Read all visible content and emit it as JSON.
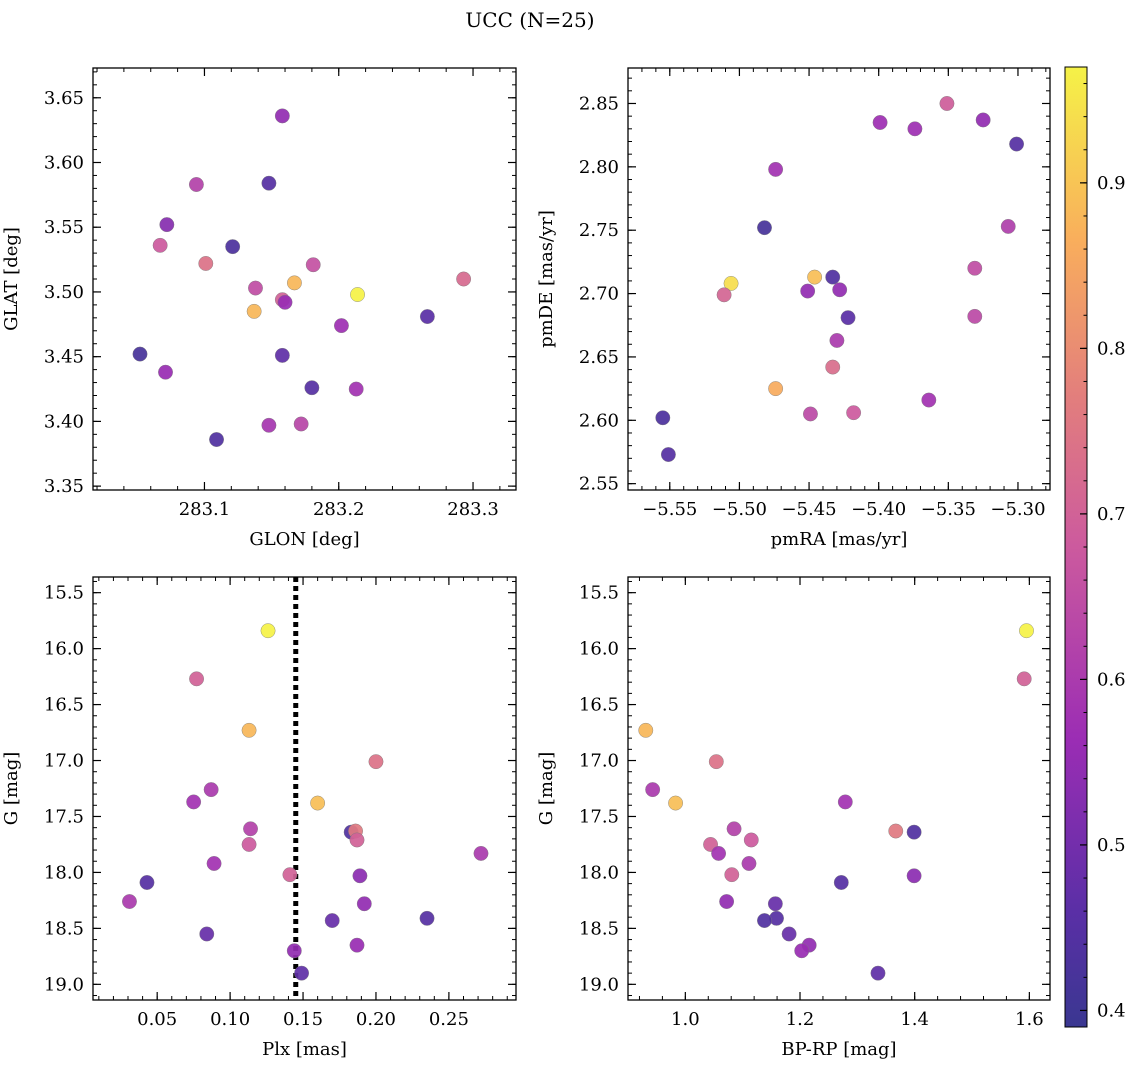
{
  "figure": {
    "title": "UCC (N=25)"
  },
  "colorbar": {
    "range": [
      0.39,
      0.97
    ],
    "ticks": [
      0.4,
      0.5,
      0.6,
      0.7,
      0.8,
      0.9
    ],
    "colormap": "plasma"
  },
  "chart_data": [
    {
      "type": "scatter",
      "xlabel": "GLON [deg]",
      "ylabel": "GLAT [deg]",
      "xlim": [
        283.017,
        283.332
      ],
      "ylim": [
        3.347,
        3.673
      ],
      "xticks": [
        283.1,
        283.2,
        283.3
      ],
      "yticks": [
        3.35,
        3.4,
        3.45,
        3.5,
        3.55,
        3.6,
        3.65
      ],
      "xdec": 1,
      "ydec": 2,
      "points": [
        {
          "x": 283.158,
          "y": 3.636,
          "c": 0.55
        },
        {
          "x": 283.148,
          "y": 3.584,
          "c": 0.45
        },
        {
          "x": 283.094,
          "y": 3.583,
          "c": 0.62
        },
        {
          "x": 283.072,
          "y": 3.552,
          "c": 0.53
        },
        {
          "x": 283.067,
          "y": 3.536,
          "c": 0.68
        },
        {
          "x": 283.121,
          "y": 3.535,
          "c": 0.43
        },
        {
          "x": 283.101,
          "y": 3.522,
          "c": 0.74
        },
        {
          "x": 283.181,
          "y": 3.521,
          "c": 0.66
        },
        {
          "x": 283.293,
          "y": 3.51,
          "c": 0.72
        },
        {
          "x": 283.167,
          "y": 3.507,
          "c": 0.88
        },
        {
          "x": 283.138,
          "y": 3.503,
          "c": 0.65
        },
        {
          "x": 283.214,
          "y": 3.498,
          "c": 0.97
        },
        {
          "x": 283.158,
          "y": 3.494,
          "c": 0.7
        },
        {
          "x": 283.16,
          "y": 3.492,
          "c": 0.56
        },
        {
          "x": 283.137,
          "y": 3.485,
          "c": 0.88
        },
        {
          "x": 283.266,
          "y": 3.481,
          "c": 0.46
        },
        {
          "x": 283.202,
          "y": 3.474,
          "c": 0.57
        },
        {
          "x": 283.052,
          "y": 3.452,
          "c": 0.42
        },
        {
          "x": 283.158,
          "y": 3.451,
          "c": 0.47
        },
        {
          "x": 283.071,
          "y": 3.438,
          "c": 0.56
        },
        {
          "x": 283.18,
          "y": 3.426,
          "c": 0.45
        },
        {
          "x": 283.213,
          "y": 3.425,
          "c": 0.58
        },
        {
          "x": 283.172,
          "y": 3.398,
          "c": 0.63
        },
        {
          "x": 283.148,
          "y": 3.397,
          "c": 0.59
        },
        {
          "x": 283.109,
          "y": 3.386,
          "c": 0.44
        }
      ]
    },
    {
      "type": "scatter",
      "xlabel": "pmRA [mas/yr]",
      "ylabel": "pmDE [mas/yr]",
      "xlim": [
        -5.58,
        -5.277
      ],
      "ylim": [
        2.545,
        2.878
      ],
      "xticks": [
        -5.55,
        -5.5,
        -5.45,
        -5.4,
        -5.35,
        -5.3
      ],
      "yticks": [
        2.55,
        2.6,
        2.65,
        2.7,
        2.75,
        2.8,
        2.85
      ],
      "xdec": 2,
      "ydec": 2,
      "points": [
        {
          "x": -5.351,
          "y": 2.85,
          "c": 0.69
        },
        {
          "x": -5.325,
          "y": 2.837,
          "c": 0.55
        },
        {
          "x": -5.399,
          "y": 2.835,
          "c": 0.57
        },
        {
          "x": -5.374,
          "y": 2.83,
          "c": 0.57
        },
        {
          "x": -5.301,
          "y": 2.818,
          "c": 0.45
        },
        {
          "x": -5.474,
          "y": 2.798,
          "c": 0.58
        },
        {
          "x": -5.307,
          "y": 2.753,
          "c": 0.61
        },
        {
          "x": -5.482,
          "y": 2.752,
          "c": 0.42
        },
        {
          "x": -5.331,
          "y": 2.72,
          "c": 0.65
        },
        {
          "x": -5.446,
          "y": 2.713,
          "c": 0.89
        },
        {
          "x": -5.433,
          "y": 2.713,
          "c": 0.44
        },
        {
          "x": -5.506,
          "y": 2.708,
          "c": 0.94
        },
        {
          "x": -5.428,
          "y": 2.703,
          "c": 0.55
        },
        {
          "x": -5.451,
          "y": 2.702,
          "c": 0.55
        },
        {
          "x": -5.511,
          "y": 2.699,
          "c": 0.71
        },
        {
          "x": -5.331,
          "y": 2.682,
          "c": 0.64
        },
        {
          "x": -5.422,
          "y": 2.681,
          "c": 0.46
        },
        {
          "x": -5.43,
          "y": 2.663,
          "c": 0.6
        },
        {
          "x": -5.433,
          "y": 2.642,
          "c": 0.73
        },
        {
          "x": -5.474,
          "y": 2.625,
          "c": 0.86
        },
        {
          "x": -5.364,
          "y": 2.616,
          "c": 0.58
        },
        {
          "x": -5.418,
          "y": 2.606,
          "c": 0.68
        },
        {
          "x": -5.449,
          "y": 2.605,
          "c": 0.64
        },
        {
          "x": -5.555,
          "y": 2.602,
          "c": 0.43
        },
        {
          "x": -5.551,
          "y": 2.573,
          "c": 0.45
        }
      ]
    },
    {
      "type": "scatter",
      "xlabel": "Plx [mas]",
      "ylabel": "G [mag]",
      "xlim": [
        0.006,
        0.296
      ],
      "ylim": [
        19.14,
        15.36
      ],
      "xticks": [
        0.05,
        0.1,
        0.15,
        0.2,
        0.25
      ],
      "yticks": [
        15.5,
        16.0,
        16.5,
        17.0,
        17.5,
        18.0,
        18.5,
        19.0
      ],
      "xdec": 2,
      "ydec": 1,
      "vline": 0.145,
      "points": [
        {
          "x": 0.126,
          "y": 15.84,
          "c": 0.97
        },
        {
          "x": 0.077,
          "y": 16.27,
          "c": 0.7
        },
        {
          "x": 0.113,
          "y": 16.73,
          "c": 0.88
        },
        {
          "x": 0.2,
          "y": 17.01,
          "c": 0.74
        },
        {
          "x": 0.087,
          "y": 17.26,
          "c": 0.6
        },
        {
          "x": 0.075,
          "y": 17.37,
          "c": 0.58
        },
        {
          "x": 0.16,
          "y": 17.38,
          "c": 0.89
        },
        {
          "x": 0.114,
          "y": 17.61,
          "c": 0.62
        },
        {
          "x": 0.183,
          "y": 17.64,
          "c": 0.44
        },
        {
          "x": 0.186,
          "y": 17.63,
          "c": 0.76
        },
        {
          "x": 0.187,
          "y": 17.71,
          "c": 0.7
        },
        {
          "x": 0.113,
          "y": 17.75,
          "c": 0.68
        },
        {
          "x": 0.272,
          "y": 17.83,
          "c": 0.6
        },
        {
          "x": 0.089,
          "y": 17.92,
          "c": 0.58
        },
        {
          "x": 0.141,
          "y": 18.02,
          "c": 0.7
        },
        {
          "x": 0.189,
          "y": 18.03,
          "c": 0.54
        },
        {
          "x": 0.043,
          "y": 18.09,
          "c": 0.45
        },
        {
          "x": 0.031,
          "y": 18.26,
          "c": 0.6
        },
        {
          "x": 0.192,
          "y": 18.28,
          "c": 0.55
        },
        {
          "x": 0.235,
          "y": 18.41,
          "c": 0.45
        },
        {
          "x": 0.17,
          "y": 18.43,
          "c": 0.48
        },
        {
          "x": 0.084,
          "y": 18.55,
          "c": 0.48
        },
        {
          "x": 0.187,
          "y": 18.65,
          "c": 0.56
        },
        {
          "x": 0.144,
          "y": 18.7,
          "c": 0.55
        },
        {
          "x": 0.149,
          "y": 18.9,
          "c": 0.47
        }
      ]
    },
    {
      "type": "scatter",
      "xlabel": "BP-RP [mag]",
      "ylabel": "G [mag]",
      "xlim": [
        0.9,
        1.636
      ],
      "ylim": [
        19.14,
        15.36
      ],
      "xticks": [
        1.0,
        1.2,
        1.4,
        1.6
      ],
      "yticks": [
        15.5,
        16.0,
        16.5,
        17.0,
        17.5,
        18.0,
        18.5,
        19.0
      ],
      "xdec": 1,
      "ydec": 1,
      "points": [
        {
          "x": 1.595,
          "y": 15.84,
          "c": 0.97
        },
        {
          "x": 1.591,
          "y": 16.27,
          "c": 0.7
        },
        {
          "x": 0.931,
          "y": 16.73,
          "c": 0.88
        },
        {
          "x": 1.054,
          "y": 17.01,
          "c": 0.74
        },
        {
          "x": 0.943,
          "y": 17.26,
          "c": 0.6
        },
        {
          "x": 1.279,
          "y": 17.37,
          "c": 0.58
        },
        {
          "x": 0.983,
          "y": 17.38,
          "c": 0.89
        },
        {
          "x": 1.085,
          "y": 17.61,
          "c": 0.62
        },
        {
          "x": 1.367,
          "y": 17.63,
          "c": 0.76
        },
        {
          "x": 1.399,
          "y": 17.64,
          "c": 0.44
        },
        {
          "x": 1.115,
          "y": 17.71,
          "c": 0.68
        },
        {
          "x": 1.044,
          "y": 17.75,
          "c": 0.7
        },
        {
          "x": 1.058,
          "y": 17.83,
          "c": 0.58
        },
        {
          "x": 1.111,
          "y": 17.92,
          "c": 0.6
        },
        {
          "x": 1.081,
          "y": 18.02,
          "c": 0.7
        },
        {
          "x": 1.399,
          "y": 18.03,
          "c": 0.54
        },
        {
          "x": 1.272,
          "y": 18.09,
          "c": 0.45
        },
        {
          "x": 1.072,
          "y": 18.26,
          "c": 0.55
        },
        {
          "x": 1.157,
          "y": 18.28,
          "c": 0.48
        },
        {
          "x": 1.159,
          "y": 18.41,
          "c": 0.45
        },
        {
          "x": 1.138,
          "y": 18.43,
          "c": 0.44
        },
        {
          "x": 1.181,
          "y": 18.55,
          "c": 0.48
        },
        {
          "x": 1.216,
          "y": 18.65,
          "c": 0.55
        },
        {
          "x": 1.203,
          "y": 18.7,
          "c": 0.56
        },
        {
          "x": 1.336,
          "y": 18.9,
          "c": 0.47
        }
      ]
    }
  ]
}
